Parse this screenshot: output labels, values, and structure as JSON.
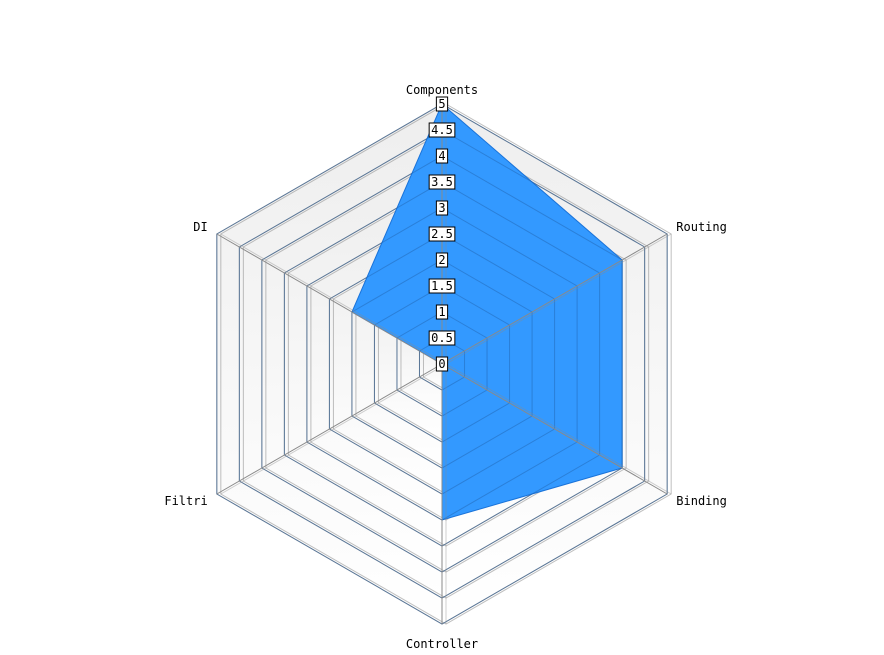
{
  "chart_data": {
    "type": "radar",
    "title": "",
    "axes": [
      "Components",
      "Routing",
      "Binding",
      "Controller",
      "Filtri",
      "DI"
    ],
    "rlim": [
      0,
      5
    ],
    "ticks": [
      "0",
      "0.5",
      "1",
      "1.5",
      "2",
      "2.5",
      "3",
      "3.5",
      "4",
      "4.5",
      "5"
    ],
    "series": [
      {
        "values": [
          5,
          4,
          4,
          3,
          0,
          2
        ]
      }
    ],
    "grid": true,
    "legend": "none"
  },
  "colors": {
    "series_fill": "#3399ff",
    "series_stroke": "#1a73d9",
    "grid_line": "#8a8a8a",
    "band_top": "#eeeeee",
    "band_bottom": "#ffffff"
  }
}
